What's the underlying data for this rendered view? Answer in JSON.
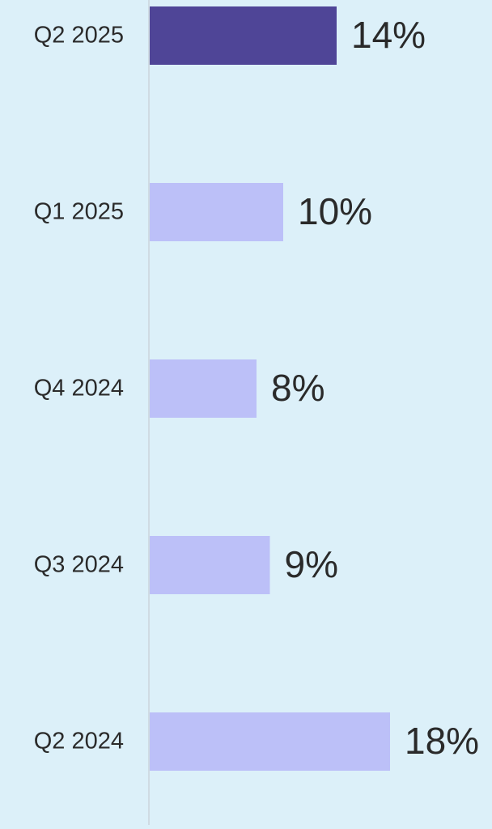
{
  "chart_data": {
    "type": "hbar",
    "categories": [
      "Q2 2025",
      "Q1 2025",
      "Q4 2024",
      "Q3 2024",
      "Q2 2024"
    ],
    "values": [
      14,
      10,
      8,
      9,
      18
    ],
    "value_labels": [
      "14%",
      "10%",
      "8%",
      "9%",
      "18%"
    ],
    "colors": [
      "#4f4597",
      "#bcc0f8",
      "#bcc0f8",
      "#bcc0f8",
      "#bcc0f8"
    ]
  }
}
